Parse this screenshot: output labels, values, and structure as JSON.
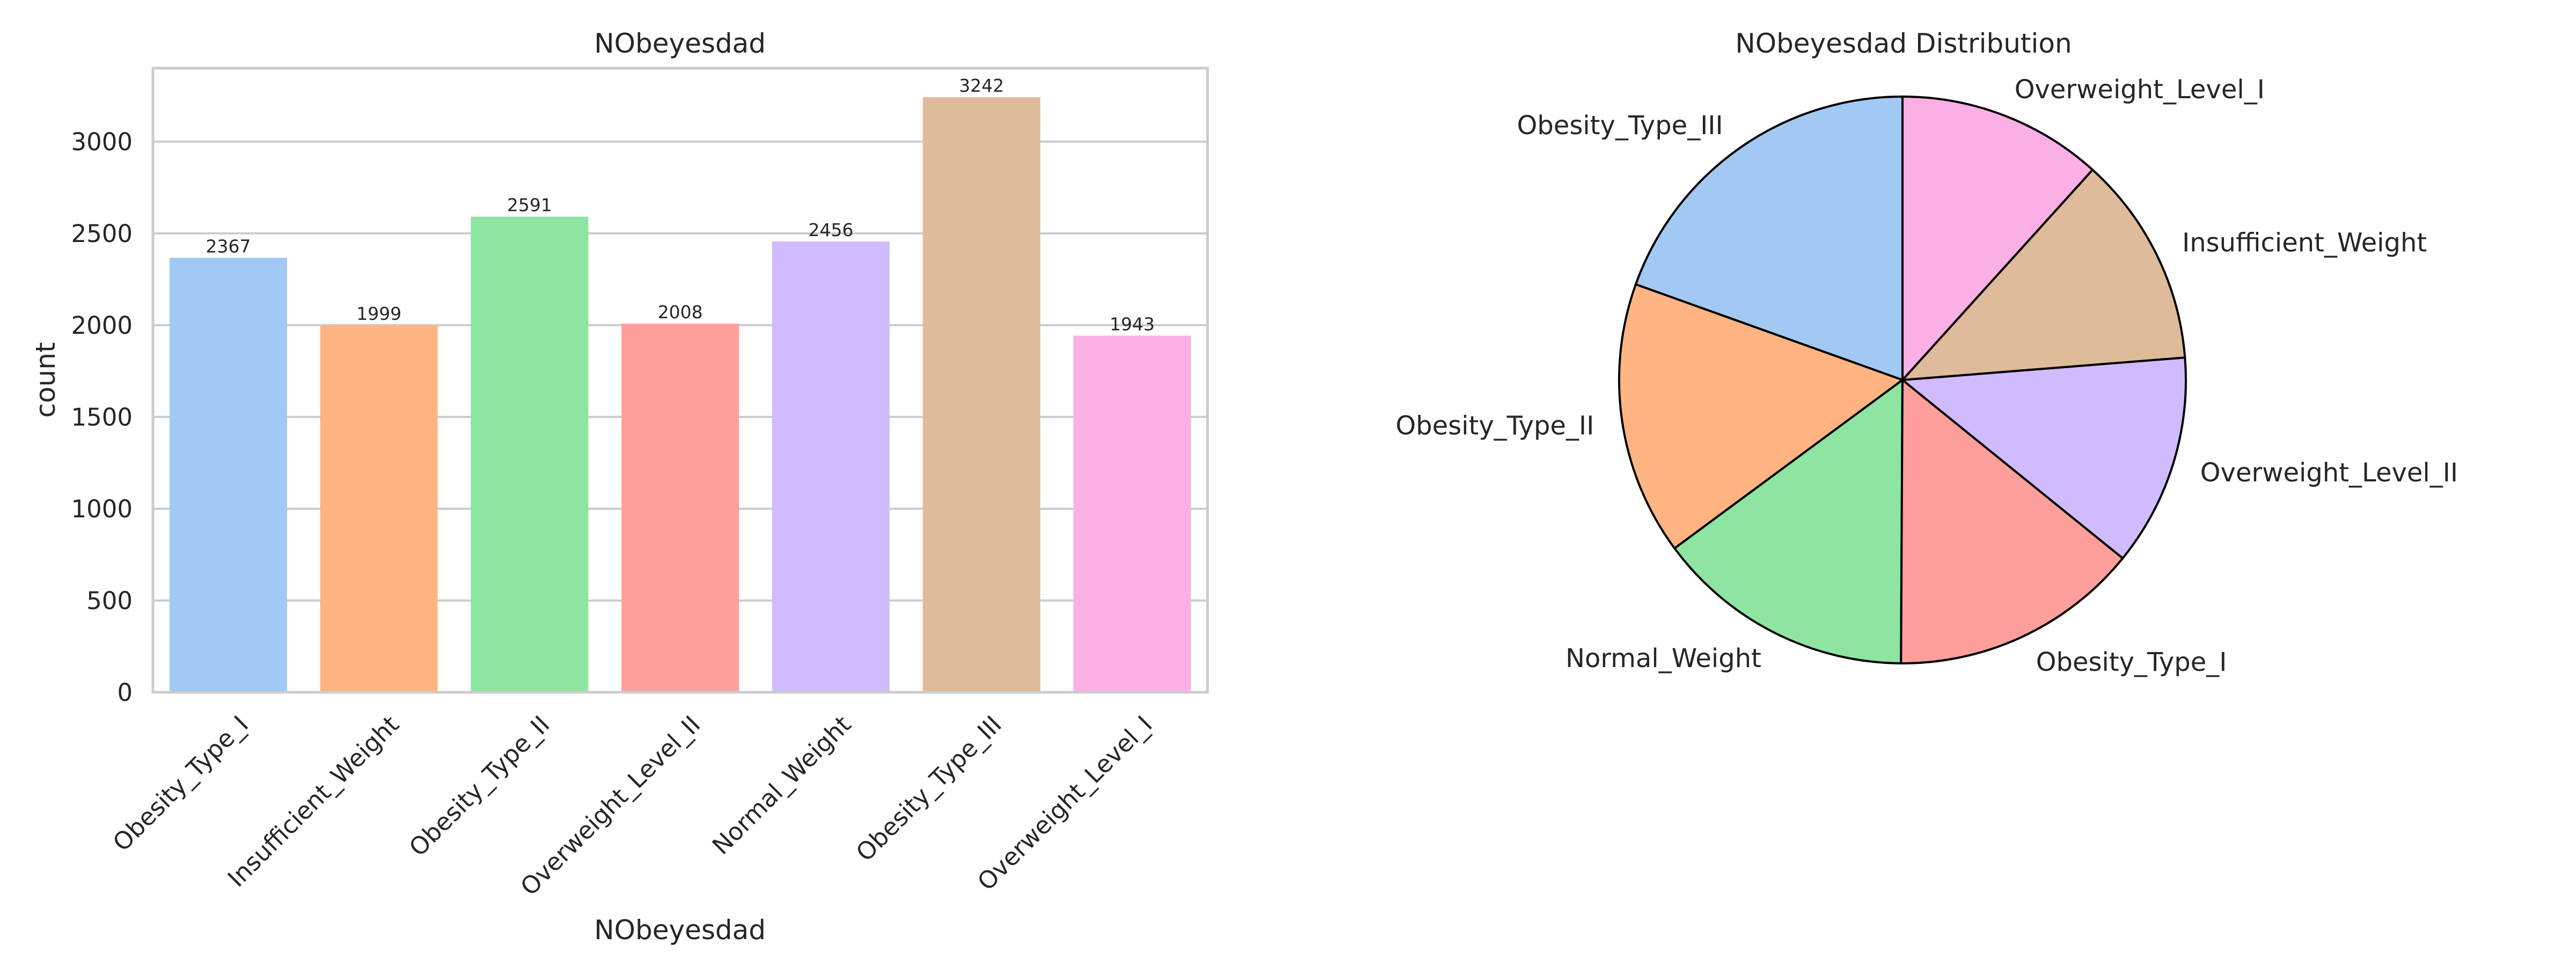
{
  "chart_data": [
    {
      "type": "bar",
      "title": "NObeyesdad",
      "xlabel": "NObeyesdad",
      "ylabel": "count",
      "categories": [
        "Obesity_Type_I",
        "Insufficient_Weight",
        "Obesity_Type_II",
        "Overweight_Level_II",
        "Normal_Weight",
        "Obesity_Type_III",
        "Overweight_Level_I"
      ],
      "values": [
        2367,
        1999,
        2591,
        2008,
        2456,
        3242,
        1943
      ],
      "colors": [
        "#a1c9f4",
        "#ffb482",
        "#8de5a1",
        "#ff9f9b",
        "#d0bbff",
        "#debb9b",
        "#fab0e4"
      ],
      "yticks": [
        0,
        500,
        1000,
        1500,
        2000,
        2500,
        3000
      ],
      "ylim": [
        0,
        3400
      ],
      "grid": true
    },
    {
      "type": "pie",
      "title": "NObeyesdad Distribution",
      "labels": [
        "Obesity_Type_III",
        "Obesity_Type_II",
        "Normal_Weight",
        "Obesity_Type_I",
        "Overweight_Level_II",
        "Insufficient_Weight",
        "Overweight_Level_I"
      ],
      "values": [
        3242,
        2591,
        2456,
        2367,
        2008,
        1999,
        1943
      ],
      "colors": [
        "#a1c9f4",
        "#ffb482",
        "#8de5a1",
        "#ff9f9b",
        "#d0bbff",
        "#debb9b",
        "#fab0e4"
      ],
      "start_angle": 90,
      "direction": "counterclockwise"
    }
  ]
}
